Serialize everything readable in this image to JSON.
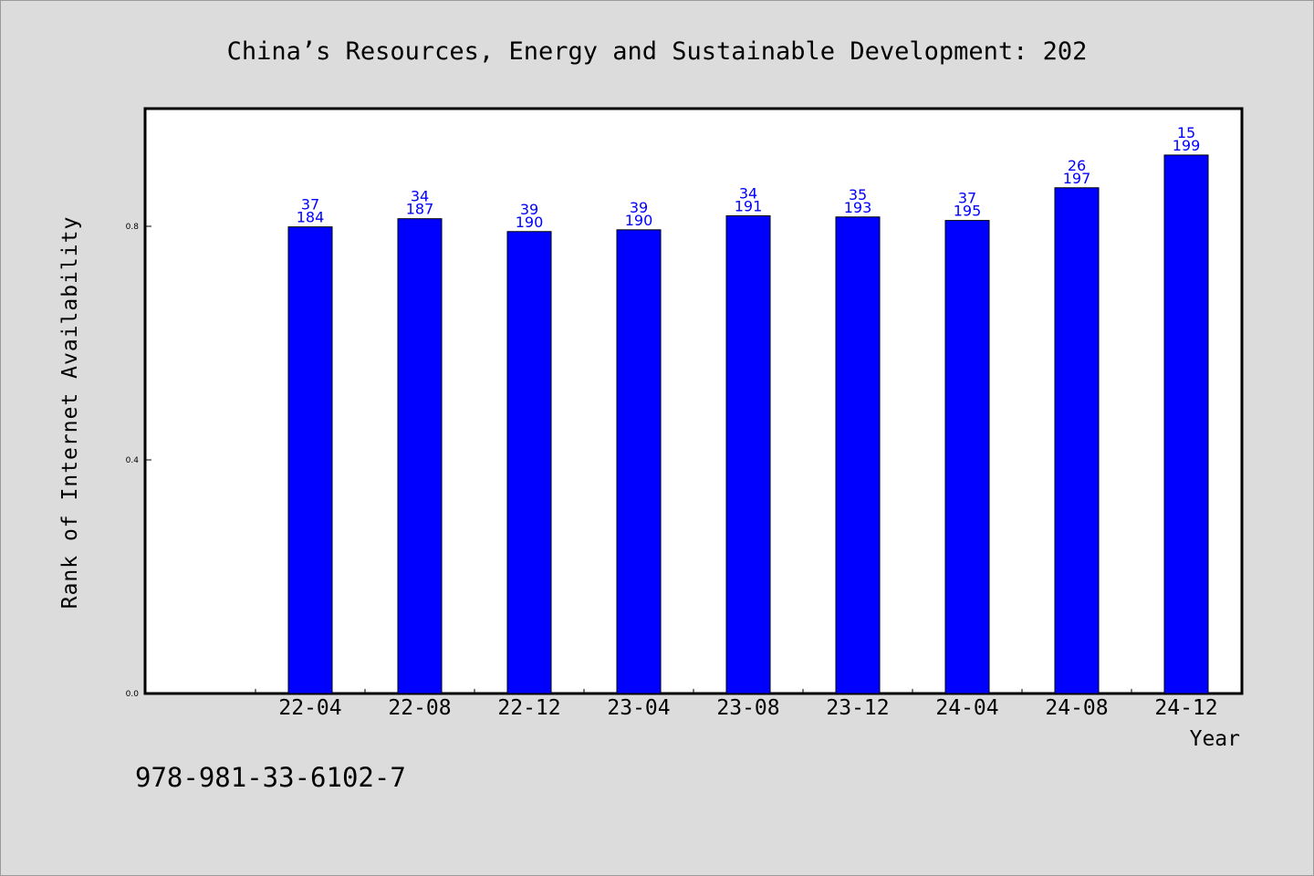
{
  "chart_data": {
    "type": "bar",
    "title": "China’s Resources, Energy and Sustainable Development: 202",
    "xlabel": "Year",
    "ylabel": "Rank of Internet Availability",
    "ylim": [
      0,
      1.0
    ],
    "yticks": [
      "0.0",
      "0.4",
      "0.8"
    ],
    "ytick_values": [
      0.0,
      0.4,
      0.8
    ],
    "categories": [
      "22-04",
      "22-08",
      "22-12",
      "23-04",
      "23-08",
      "23-12",
      "24-04",
      "24-08",
      "24-12"
    ],
    "values": [
      0.799,
      0.813,
      0.791,
      0.794,
      0.818,
      0.816,
      0.81,
      0.866,
      0.922
    ],
    "labels_top": [
      "37",
      "34",
      "39",
      "39",
      "34",
      "35",
      "37",
      "26",
      "15"
    ],
    "labels_bottom": [
      "184",
      "187",
      "190",
      "190",
      "191",
      "193",
      "195",
      "197",
      "199"
    ],
    "bar_color": "#0000ff",
    "label_color": "#0000ff",
    "grid": false,
    "legend": "none"
  },
  "footer": {
    "isbn": "978-981-33-6102-7"
  }
}
